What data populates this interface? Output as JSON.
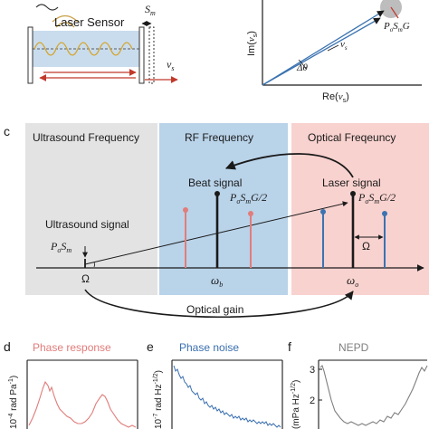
{
  "colors": {
    "ultrasound_band": "#e3e3e3",
    "rf_band": "#b9d3e9",
    "optical_band": "#f8d2cf",
    "red_lines": "#e27d7b",
    "blue_lines": "#3b73b1",
    "sensor_fill": "#c9dcee",
    "phase_response": "#e07c7a",
    "phase_noise": "#3a6fb0",
    "nepd": "#7f7f7f"
  },
  "panel_a": {
    "sensor_label": "Laser Sensor",
    "s_label": "S",
    "s_sub": "m",
    "v_label": "v",
    "v_sub": "s"
  },
  "panel_b": {
    "ylabel": "Im(",
    "ylabel_var": "v",
    "ylabel_sub": "s",
    "ylabel_end": ")",
    "xlabel": "Re(",
    "xlabel_var": "v",
    "xlabel_sub": "s",
    "xlabel_end": ")",
    "psg": "P",
    "psg_o": "o",
    "psg_s": "S",
    "psg_m": "m",
    "psg_g": "G",
    "vs": "v",
    "vs_sub": "s",
    "dtheta": "Δθ"
  },
  "panel_c": {
    "letter": "c",
    "ultrasound_title": "Ultrasound Frequency",
    "rf_title": "RF Frequency",
    "optical_title": "Optical Freqeuncy",
    "beat_signal": "Beat signal",
    "laser_signal": "Laser signal",
    "ultrasound_signal": "Ultrasound signal",
    "beat_amp": "P",
    "beat_amp_o": "o",
    "beat_amp_s": "S",
    "beat_amp_m": "m",
    "beat_amp_g": "G/2",
    "laser_amp": "P",
    "laser_amp_o": "o",
    "laser_amp_s": "S",
    "laser_amp_m": "m",
    "laser_amp_g": "G/2",
    "us_amp": "P",
    "us_amp_o": "o",
    "us_amp_s": "S",
    "us_amp_m": "m",
    "omega": "Ω",
    "omega_right": "Ω",
    "omega_b": "ω",
    "omega_b_sub": "b",
    "omega_o": "ω",
    "omega_o_sub": "o",
    "optical_gain": "Optical gain"
  },
  "panel_d": {
    "letter": "d",
    "title": "Phase response",
    "ylabel": "10",
    "ylabel_exp": "-4",
    "ylabel_unit": " rad Pa",
    "ylabel_unit_exp": "-1",
    "ylabel_end": ")"
  },
  "panel_e": {
    "letter": "e",
    "title": "Phase noise",
    "ylabel": "10",
    "ylabel_exp": "-7",
    "ylabel_unit": " rad Hz",
    "ylabel_unit_exp": "-1/2",
    "ylabel_end": ")"
  },
  "panel_f": {
    "letter": "f",
    "title": "NEPD",
    "ylabel": "(mPa Hz",
    "ylabel_exp": "-1/2",
    "ylabel_end": ")"
  }
}
